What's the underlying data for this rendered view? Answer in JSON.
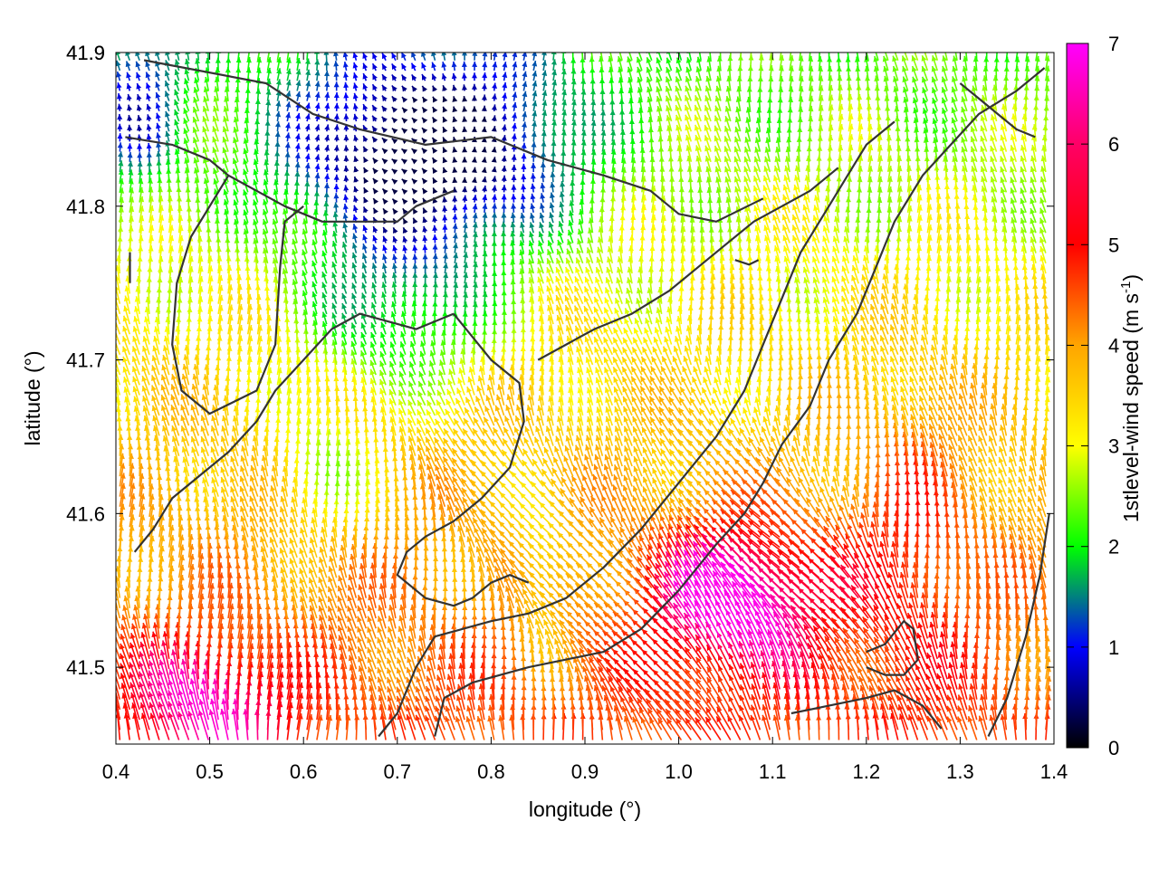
{
  "chart_data": {
    "type": "vector-field",
    "xlabel": "longitude (°)",
    "ylabel": "latitude (°)",
    "xlim": [
      0.4,
      1.4
    ],
    "ylim": [
      41.45,
      41.9
    ],
    "xticks": [
      "0.4",
      "0.5",
      "0.6",
      "0.7",
      "0.8",
      "0.9",
      "1.0",
      "1.1",
      "1.2",
      "1.3",
      "1.4"
    ],
    "yticks": [
      "41.5",
      "41.6",
      "41.7",
      "41.8",
      "41.9"
    ],
    "colorbar": {
      "label_prefix": "1stlevel-wind speed (m s",
      "label_exponent": "-1",
      "label_suffix": ")",
      "range": [
        0,
        7
      ],
      "ticks": [
        "0",
        "1",
        "2",
        "3",
        "4",
        "5",
        "6",
        "7"
      ],
      "colors": [
        "#000000",
        "#0000ff",
        "#00ff00",
        "#ffff00",
        "#ffa500",
        "#ff0000",
        "#ff00ff"
      ]
    },
    "grid": false,
    "contour_color": "#333333",
    "contours": [
      [
        [
          0.43,
          41.895
        ],
        [
          0.56,
          41.88
        ],
        [
          0.61,
          41.86
        ],
        [
          0.66,
          41.85
        ],
        [
          0.73,
          41.84
        ],
        [
          0.8,
          41.845
        ],
        [
          0.86,
          41.83
        ],
        [
          0.92,
          41.82
        ],
        [
          0.97,
          41.81
        ],
        [
          1.0,
          41.795
        ],
        [
          1.04,
          41.79
        ],
        [
          1.09,
          41.805
        ]
      ],
      [
        [
          0.41,
          41.845
        ],
        [
          0.46,
          41.84
        ],
        [
          0.5,
          41.83
        ],
        [
          0.52,
          41.82
        ],
        [
          0.55,
          41.81
        ],
        [
          0.58,
          41.8
        ],
        [
          0.62,
          41.79
        ],
        [
          0.66,
          41.79
        ],
        [
          0.7,
          41.79
        ],
        [
          0.72,
          41.8
        ],
        [
          0.76,
          41.81
        ]
      ],
      [
        [
          0.415,
          41.77
        ],
        [
          0.415,
          41.75
        ]
      ],
      [
        [
          0.52,
          41.82
        ],
        [
          0.5,
          41.8
        ],
        [
          0.48,
          41.78
        ],
        [
          0.465,
          41.75
        ],
        [
          0.46,
          41.71
        ],
        [
          0.47,
          41.68
        ],
        [
          0.5,
          41.665
        ],
        [
          0.55,
          41.68
        ],
        [
          0.57,
          41.71
        ],
        [
          0.575,
          41.76
        ],
        [
          0.58,
          41.79
        ],
        [
          0.6,
          41.8
        ]
      ],
      [
        [
          0.42,
          41.575
        ],
        [
          0.44,
          41.59
        ],
        [
          0.46,
          41.61
        ],
        [
          0.49,
          41.625
        ],
        [
          0.52,
          41.64
        ],
        [
          0.55,
          41.66
        ],
        [
          0.57,
          41.68
        ],
        [
          0.6,
          41.7
        ],
        [
          0.63,
          41.72
        ],
        [
          0.66,
          41.73
        ],
        [
          0.69,
          41.725
        ],
        [
          0.72,
          41.72
        ],
        [
          0.76,
          41.73
        ]
      ],
      [
        [
          0.76,
          41.73
        ],
        [
          0.78,
          41.715
        ],
        [
          0.8,
          41.7
        ],
        [
          0.83,
          41.685
        ],
        [
          0.835,
          41.66
        ],
        [
          0.82,
          41.63
        ],
        [
          0.79,
          41.61
        ],
        [
          0.76,
          41.595
        ],
        [
          0.73,
          41.585
        ],
        [
          0.71,
          41.575
        ],
        [
          0.7,
          41.56
        ],
        [
          0.73,
          41.545
        ],
        [
          0.76,
          41.54
        ],
        [
          0.78,
          41.545
        ],
        [
          0.8,
          41.555
        ],
        [
          0.82,
          41.56
        ],
        [
          0.84,
          41.555
        ]
      ],
      [
        [
          0.74,
          41.455
        ],
        [
          0.75,
          41.48
        ],
        [
          0.78,
          41.49
        ],
        [
          0.84,
          41.5
        ],
        [
          0.88,
          41.505
        ],
        [
          0.92,
          41.51
        ],
        [
          0.96,
          41.525
        ],
        [
          1.0,
          41.55
        ],
        [
          1.04,
          41.58
        ],
        [
          1.07,
          41.6
        ],
        [
          1.09,
          41.62
        ],
        [
          1.11,
          41.645
        ],
        [
          1.14,
          41.67
        ],
        [
          1.16,
          41.7
        ],
        [
          1.19,
          41.73
        ],
        [
          1.21,
          41.76
        ],
        [
          1.23,
          41.79
        ],
        [
          1.26,
          41.82
        ],
        [
          1.29,
          41.84
        ],
        [
          1.32,
          41.86
        ],
        [
          1.36,
          41.875
        ],
        [
          1.39,
          41.89
        ]
      ],
      [
        [
          0.68,
          41.455
        ],
        [
          0.7,
          41.47
        ],
        [
          0.72,
          41.5
        ],
        [
          0.74,
          41.52
        ],
        [
          0.77,
          41.525
        ],
        [
          0.8,
          41.53
        ],
        [
          0.84,
          41.535
        ],
        [
          0.88,
          41.545
        ],
        [
          0.92,
          41.565
        ],
        [
          0.96,
          41.59
        ],
        [
          1.0,
          41.62
        ],
        [
          1.04,
          41.65
        ],
        [
          1.07,
          41.68
        ],
        [
          1.09,
          41.71
        ],
        [
          1.11,
          41.74
        ],
        [
          1.13,
          41.77
        ],
        [
          1.16,
          41.8
        ],
        [
          1.18,
          41.82
        ],
        [
          1.2,
          41.84
        ],
        [
          1.23,
          41.855
        ]
      ],
      [
        [
          0.85,
          41.7
        ],
        [
          0.88,
          41.71
        ],
        [
          0.91,
          41.72
        ],
        [
          0.95,
          41.73
        ],
        [
          0.99,
          41.745
        ],
        [
          1.02,
          41.76
        ],
        [
          1.05,
          41.775
        ],
        [
          1.08,
          41.79
        ],
        [
          1.11,
          41.8
        ],
        [
          1.14,
          41.81
        ],
        [
          1.17,
          41.825
        ]
      ],
      [
        [
          1.06,
          41.765
        ],
        [
          1.075,
          41.762
        ],
        [
          1.085,
          41.765
        ]
      ],
      [
        [
          1.2,
          41.51
        ],
        [
          1.22,
          41.515
        ],
        [
          1.24,
          41.53
        ],
        [
          1.25,
          41.525
        ],
        [
          1.255,
          41.505
        ],
        [
          1.24,
          41.495
        ],
        [
          1.22,
          41.495
        ],
        [
          1.2,
          41.5
        ]
      ],
      [
        [
          1.12,
          41.47
        ],
        [
          1.16,
          41.475
        ],
        [
          1.2,
          41.48
        ],
        [
          1.23,
          41.485
        ],
        [
          1.26,
          41.475
        ],
        [
          1.28,
          41.46
        ]
      ],
      [
        [
          1.33,
          41.455
        ],
        [
          1.35,
          41.48
        ],
        [
          1.37,
          41.52
        ],
        [
          1.385,
          41.56
        ],
        [
          1.395,
          41.6
        ]
      ],
      [
        [
          1.3,
          41.88
        ],
        [
          1.32,
          41.87
        ],
        [
          1.34,
          41.86
        ],
        [
          1.36,
          41.85
        ],
        [
          1.38,
          41.845
        ]
      ]
    ]
  }
}
